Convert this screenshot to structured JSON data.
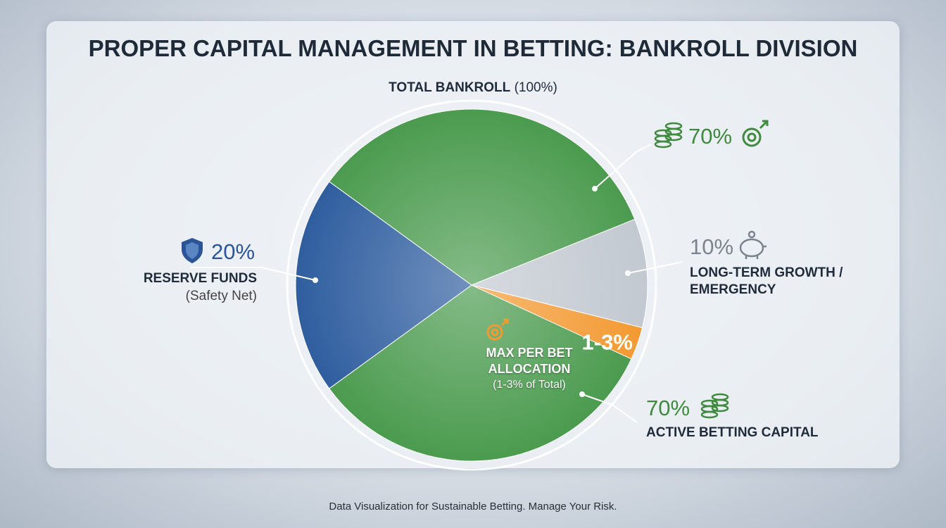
{
  "chart_data": {
    "type": "pie",
    "title": "PROPER CAPITAL MANAGEMENT IN BETTING: BANKROLL DIVISION",
    "subtitle": "TOTAL BANKROLL",
    "total_label": "(100%)",
    "categories": [
      "ACTIVE BETTING CAPITAL",
      "LONG-TERM GROWTH / EMERGENCY",
      "RESERVE FUNDS"
    ],
    "values": [
      70,
      10,
      20
    ],
    "value_labels": [
      "70%",
      "10%",
      "20%"
    ],
    "colors": [
      "#4b9b4f",
      "#c3c9d1",
      "#2f5e9f"
    ],
    "reserve_note": "(Safety Net)",
    "highlight": {
      "label": "1-3%",
      "min": 1,
      "max": 3,
      "color": "#f39a33",
      "title": "MAX PER BET ALLOCATION",
      "note": "(1-3% of Total)"
    },
    "footer": "Data Visualization for Sustainable Betting. Manage Your Risk."
  }
}
